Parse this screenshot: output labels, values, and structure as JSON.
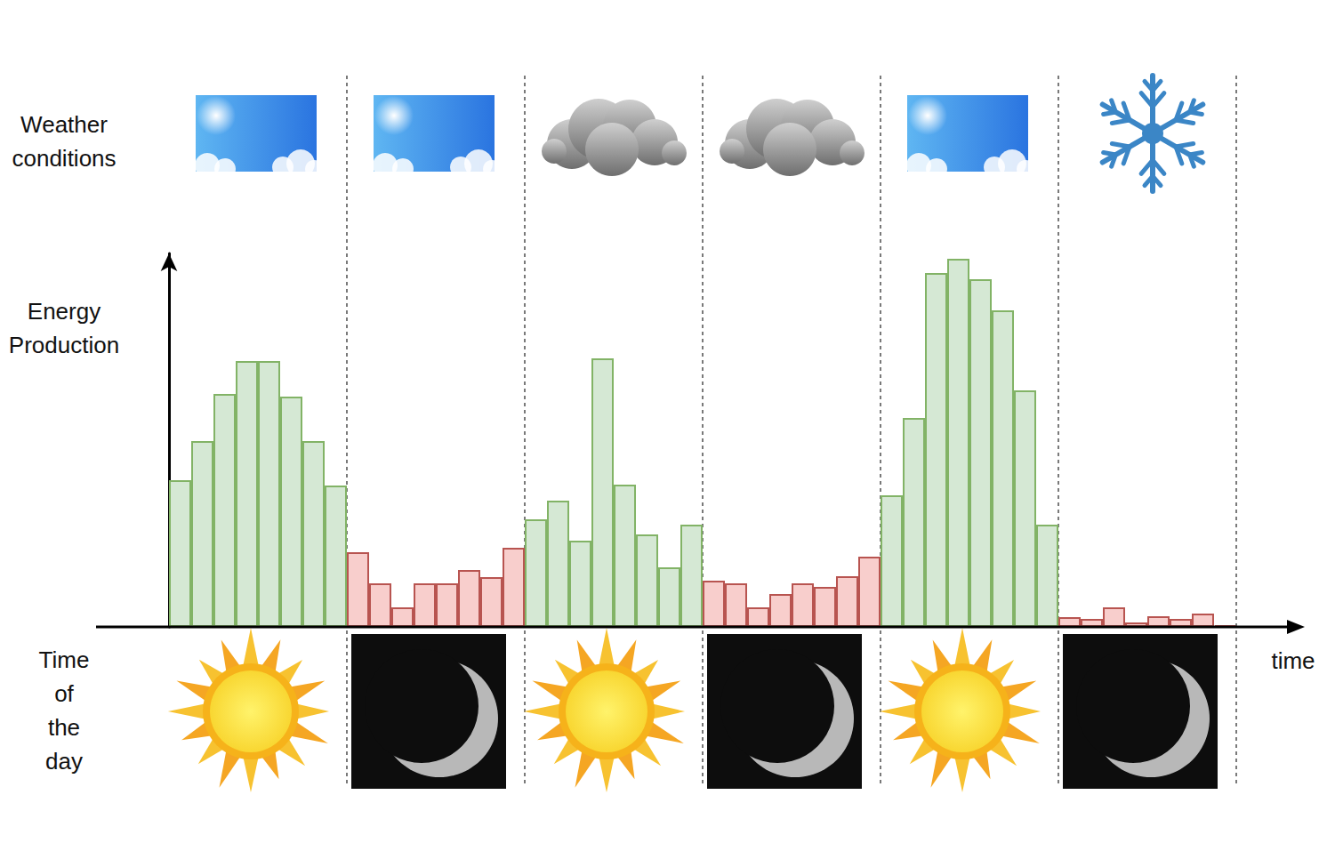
{
  "chart_data": {
    "type": "bar",
    "y_label": "Energy Production",
    "x_label": "time",
    "annotations": [
      "Weather conditions",
      "Time of the day"
    ],
    "categories": [
      null,
      null,
      null,
      null,
      null,
      null,
      null,
      null,
      null,
      null,
      null,
      null,
      null,
      null,
      null,
      null,
      null,
      null,
      null,
      null,
      null,
      null,
      null,
      null,
      null,
      null,
      null,
      null,
      null,
      null,
      null,
      null,
      null,
      null,
      null,
      null,
      null,
      null,
      null,
      null,
      null,
      null,
      null,
      null,
      null,
      null,
      null,
      null
    ],
    "values": [
      165,
      209,
      262,
      299,
      299,
      259,
      209,
      159,
      84,
      49,
      22,
      49,
      49,
      64,
      56,
      89,
      121,
      142,
      97,
      302,
      160,
      104,
      67,
      115,
      52,
      49,
      22,
      37,
      49,
      45,
      57,
      79,
      148,
      235,
      398,
      414,
      391,
      356,
      266,
      115,
      11,
      9,
      22,
      5,
      12,
      9,
      15,
      2
    ],
    "colors": [
      "#d5e8d4",
      "#d5e8d4",
      "#d5e8d4",
      "#d5e8d4",
      "#d5e8d4",
      "#d5e8d4",
      "#d5e8d4",
      "#d5e8d4",
      "#f8cecc",
      "#f8cecc",
      "#f8cecc",
      "#f8cecc",
      "#f8cecc",
      "#f8cecc",
      "#f8cecc",
      "#f8cecc",
      "#d5e8d4",
      "#d5e8d4",
      "#d5e8d4",
      "#d5e8d4",
      "#d5e8d4",
      "#d5e8d4",
      "#d5e8d4",
      "#d5e8d4",
      "#f8cecc",
      "#f8cecc",
      "#f8cecc",
      "#f8cecc",
      "#f8cecc",
      "#f8cecc",
      "#f8cecc",
      "#f8cecc",
      "#d5e8d4",
      "#d5e8d4",
      "#d5e8d4",
      "#d5e8d4",
      "#d5e8d4",
      "#d5e8d4",
      "#d5e8d4",
      "#d5e8d4",
      "#f8cecc",
      "#f8cecc",
      "#f8cecc",
      "#f8cecc",
      "#f8cecc",
      "#f8cecc",
      "#f8cecc",
      "#f8cecc"
    ],
    "ylim": [
      0,
      420
    ],
    "grid": false,
    "tick_labels": false
  }
}
